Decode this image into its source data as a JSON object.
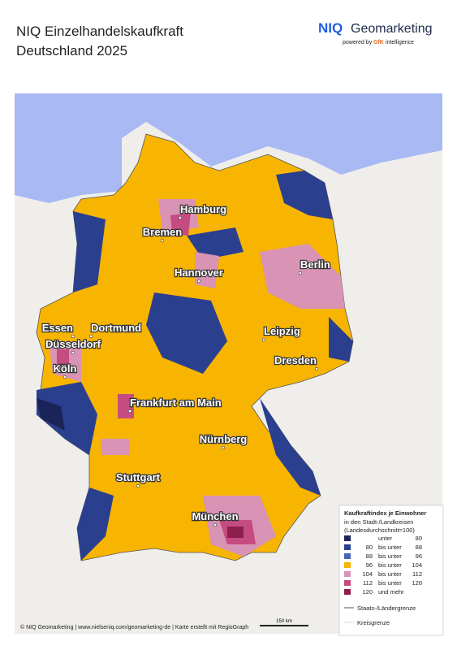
{
  "header": {
    "title_line1": "NIQ Einzelhandelskaufkraft",
    "title_line2": "Deutschland 2025",
    "brand": "NIQ",
    "brand_product": "Geomarketing",
    "powered": "powered by",
    "partner": "GfK",
    "partner_suffix": "intelligence"
  },
  "cities": [
    {
      "name": "Hamburg"
    },
    {
      "name": "Bremen"
    },
    {
      "name": "Berlin"
    },
    {
      "name": "Hannover"
    },
    {
      "name": "Essen"
    },
    {
      "name": "Dortmund"
    },
    {
      "name": "Düsseldorf"
    },
    {
      "name": "Leipzig"
    },
    {
      "name": "Köln"
    },
    {
      "name": "Dresden"
    },
    {
      "name": "Frankfurt am Main"
    },
    {
      "name": "Nürnberg"
    },
    {
      "name": "Stuttgart"
    },
    {
      "name": "München"
    }
  ],
  "legend": {
    "title": "Kaufkraftindex je Einwohner",
    "subtitle1": "in den Stadt-/Landkreisen",
    "subtitle2": "(Landesdurchschnitt=100)",
    "rows": [
      {
        "from": "",
        "label": "unter",
        "to": "80",
        "color": "#1b2459"
      },
      {
        "from": "80",
        "label": "bis unter",
        "to": "88",
        "color": "#2b3f8f"
      },
      {
        "from": "88",
        "label": "bis unter",
        "to": "96",
        "color": "#4767b4"
      },
      {
        "from": "96",
        "label": "bis unter",
        "to": "104",
        "color": "#f7b400"
      },
      {
        "from": "104",
        "label": "bis unter",
        "to": "112",
        "color": "#d893b5"
      },
      {
        "from": "112",
        "label": "bis unter",
        "to": "120",
        "color": "#c54c80"
      },
      {
        "from": "120",
        "label": "und mehr",
        "to": "",
        "color": "#8e1f4c"
      }
    ],
    "border_state": "Staats-/Ländergrenze",
    "border_district": "Kreisgrenze"
  },
  "scale": "150 km",
  "footer": "© NIQ Geomarketing | www.nielseniq.com/geomarketing-de | Karte erstellt mit RegioGraph"
}
